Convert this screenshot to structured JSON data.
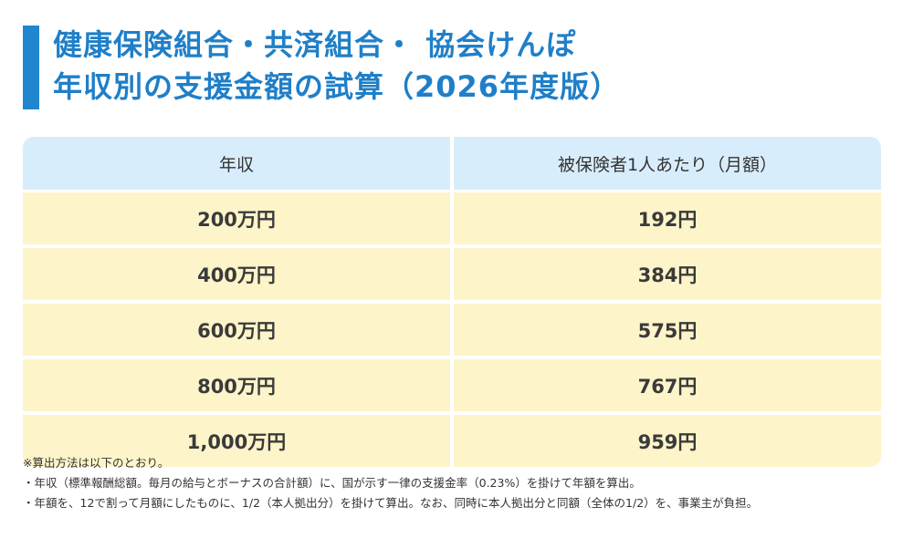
{
  "title": {
    "line1": "健康保険組合・共済組合・ 協会けんぽ",
    "line2": "年収別の支援金額の試算（2026年度版）"
  },
  "table": {
    "headers": [
      "年収",
      "被保険者1人あたり（月額）"
    ],
    "rows": [
      [
        "200万円",
        "192円"
      ],
      [
        "400万円",
        "384円"
      ],
      [
        "600万円",
        "575円"
      ],
      [
        "800万円",
        "767円"
      ],
      [
        "1,000万円",
        "959円"
      ]
    ]
  },
  "notes": [
    "※算出方法は以下のとおり。",
    "・年収（標準報酬総額。毎月の給与とボーナスの合計額）に、国が示す一律の支援金率（0.23%）を掛けて年額を算出。",
    "・年額を、12で割って月額にしたものに、1/2（本人拠出分）を掛けて算出。なお、同時に本人拠出分と同額（全体の1/2）を、事業主が負担。"
  ],
  "colors": {
    "accent": "#1f86cf",
    "header_bg": "#d8edfb",
    "row_bg": "#fdf4c9"
  }
}
